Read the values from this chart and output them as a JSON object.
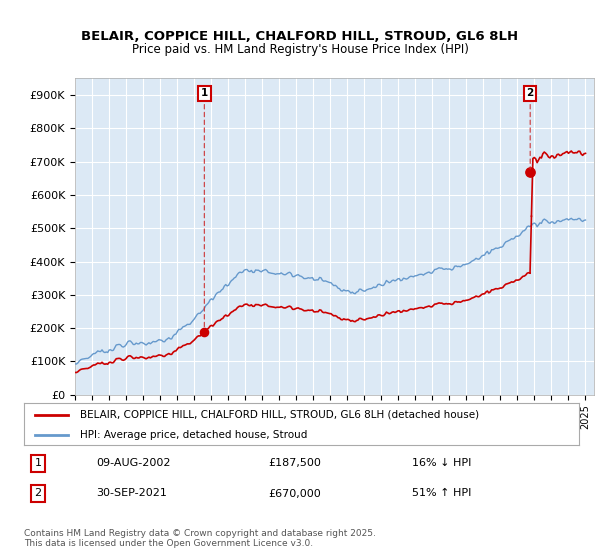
{
  "title_line1": "BELAIR, COPPICE HILL, CHALFORD HILL, STROUD, GL6 8LH",
  "title_line2": "Price paid vs. HM Land Registry's House Price Index (HPI)",
  "ylim": [
    0,
    950000
  ],
  "yticks": [
    0,
    100000,
    200000,
    300000,
    400000,
    500000,
    600000,
    700000,
    800000,
    900000
  ],
  "ytick_labels": [
    "£0",
    "£100K",
    "£200K",
    "£300K",
    "£400K",
    "£500K",
    "£600K",
    "£700K",
    "£800K",
    "£900K"
  ],
  "house_color": "#cc0000",
  "hpi_color": "#6699cc",
  "hpi_fill_color": "#dce9f5",
  "legend_house": "BELAIR, COPPICE HILL, CHALFORD HILL, STROUD, GL6 8LH (detached house)",
  "legend_hpi": "HPI: Average price, detached house, Stroud",
  "annotation1_date": "09-AUG-2002",
  "annotation1_value": 187500,
  "annotation1_text": "16% ↓ HPI",
  "annotation1_year": 2002.6,
  "annotation2_date": "30-SEP-2021",
  "annotation2_value": 670000,
  "annotation2_text": "51% ↑ HPI",
  "annotation2_year": 2021.75,
  "footer": "Contains HM Land Registry data © Crown copyright and database right 2025.\nThis data is licensed under the Open Government Licence v3.0.",
  "background_color": "#ffffff",
  "plot_bg_color": "#dce9f5",
  "grid_color": "#ffffff"
}
